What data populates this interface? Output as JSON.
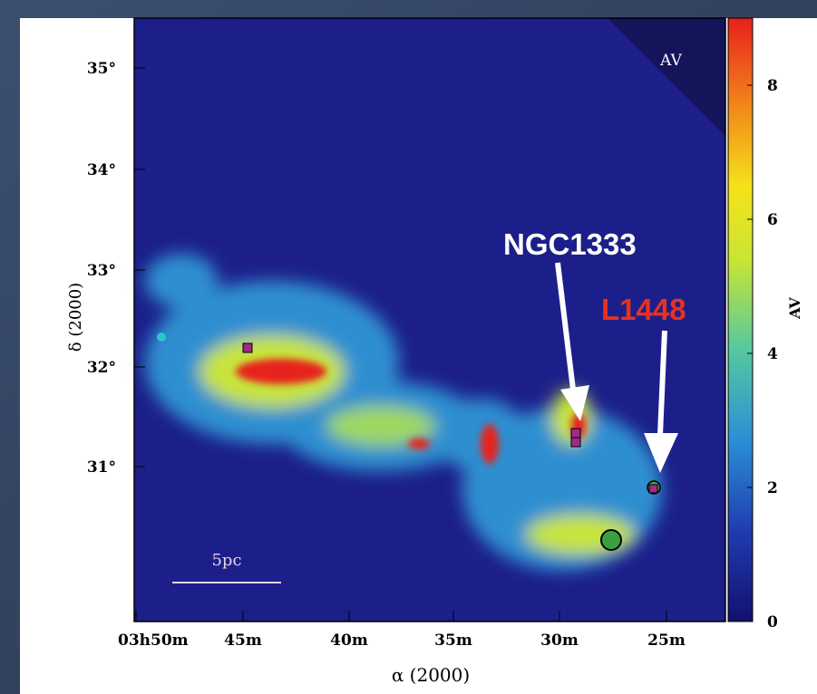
{
  "figure": {
    "y_axis": {
      "label": "δ (2000)",
      "ticks": [
        "35°",
        "34°",
        "33°",
        "32°",
        "31°"
      ]
    },
    "x_axis": {
      "label": "α (2000)",
      "ticks": [
        "03h50m",
        "45m",
        "40m",
        "35m",
        "30m",
        "25m"
      ]
    },
    "colorbar": {
      "label": "AV",
      "lim": [
        0,
        9
      ],
      "ticks": [
        0,
        2,
        4,
        6,
        8
      ]
    },
    "corner_label": "AV",
    "scale_bar": "5pc",
    "annotations": [
      "NGC1333",
      "L1448"
    ]
  }
}
